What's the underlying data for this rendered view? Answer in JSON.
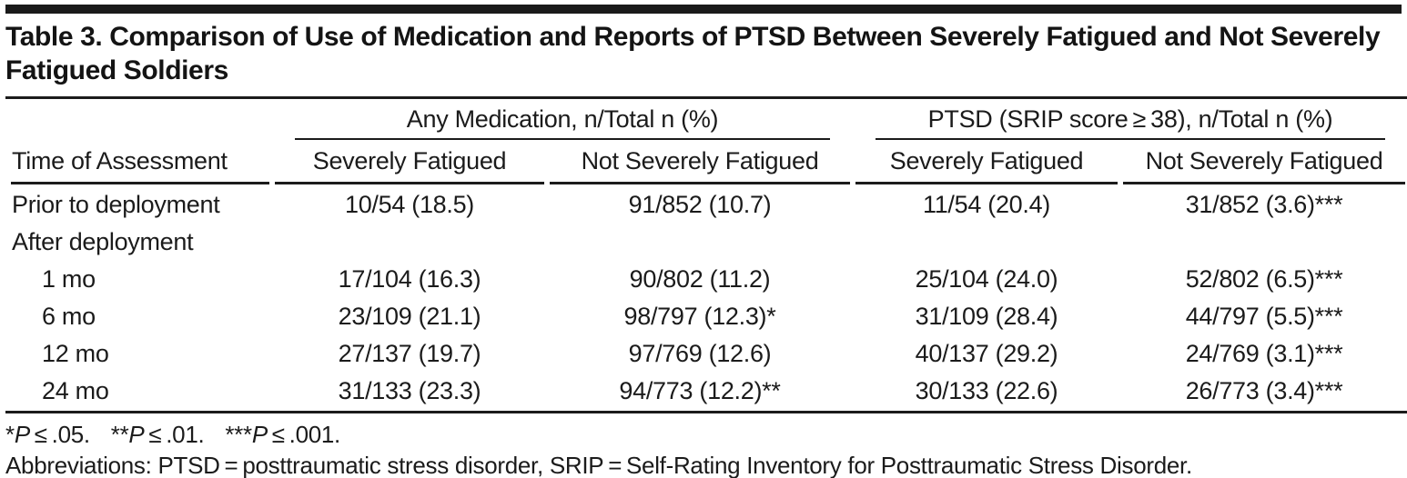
{
  "colors": {
    "text": "#1b1b1b",
    "rules": "#1b1b1b",
    "background": "#ffffff"
  },
  "title": "Table 3. Comparison of Use of Medication and Reports of PTSD Between Severely Fatigued and Not Severely Fatigued Soldiers",
  "table": {
    "col1_header": "Time of Assessment",
    "groups": [
      {
        "label": "Any Medication, n/Total n (%)"
      },
      {
        "label": "PTSD (SRIP score ≥ 38), n/Total n (%)"
      }
    ],
    "subheaders": [
      "Severely Fatigued",
      "Not Severely Fatigued",
      "Severely Fatigued",
      "Not Severely Fatigued"
    ],
    "rows": [
      {
        "label": "Prior to deployment",
        "cells": [
          "10/54 (18.5)",
          "91/852 (10.7)",
          "11/54 (20.4)",
          "31/852 (3.6)***"
        ]
      },
      {
        "label": "After deployment",
        "cells": [
          "",
          "",
          "",
          ""
        ]
      },
      {
        "label": "1 mo",
        "cells": [
          "17/104 (16.3)",
          "90/802 (11.2)",
          "25/104 (24.0)",
          "52/802 (6.5)***"
        ]
      },
      {
        "label": "6 mo",
        "cells": [
          "23/109 (21.1)",
          "98/797 (12.3)*",
          "31/109 (28.4)",
          "44/797 (5.5)***"
        ]
      },
      {
        "label": "12 mo",
        "cells": [
          "27/137 (19.7)",
          "97/769 (12.6)",
          "40/137 (29.2)",
          "24/769 (3.1)***"
        ]
      },
      {
        "label": "24 mo",
        "cells": [
          "31/133 (23.3)",
          "94/773 (12.2)**",
          "30/133 (22.6)",
          "26/773 (3.4)***"
        ]
      }
    ]
  },
  "footnotes": {
    "sig": [
      {
        "stars": "*",
        "p_label": "P",
        "cond": " ≤ .05."
      },
      {
        "stars": "**",
        "p_label": "P",
        "cond": " ≤ .01."
      },
      {
        "stars": "***",
        "p_label": "P",
        "cond": " ≤ .001."
      }
    ],
    "abbreviations": "Abbreviations: PTSD = posttraumatic stress disorder, SRIP = Self-Rating Inventory for Posttraumatic Stress Disorder."
  }
}
